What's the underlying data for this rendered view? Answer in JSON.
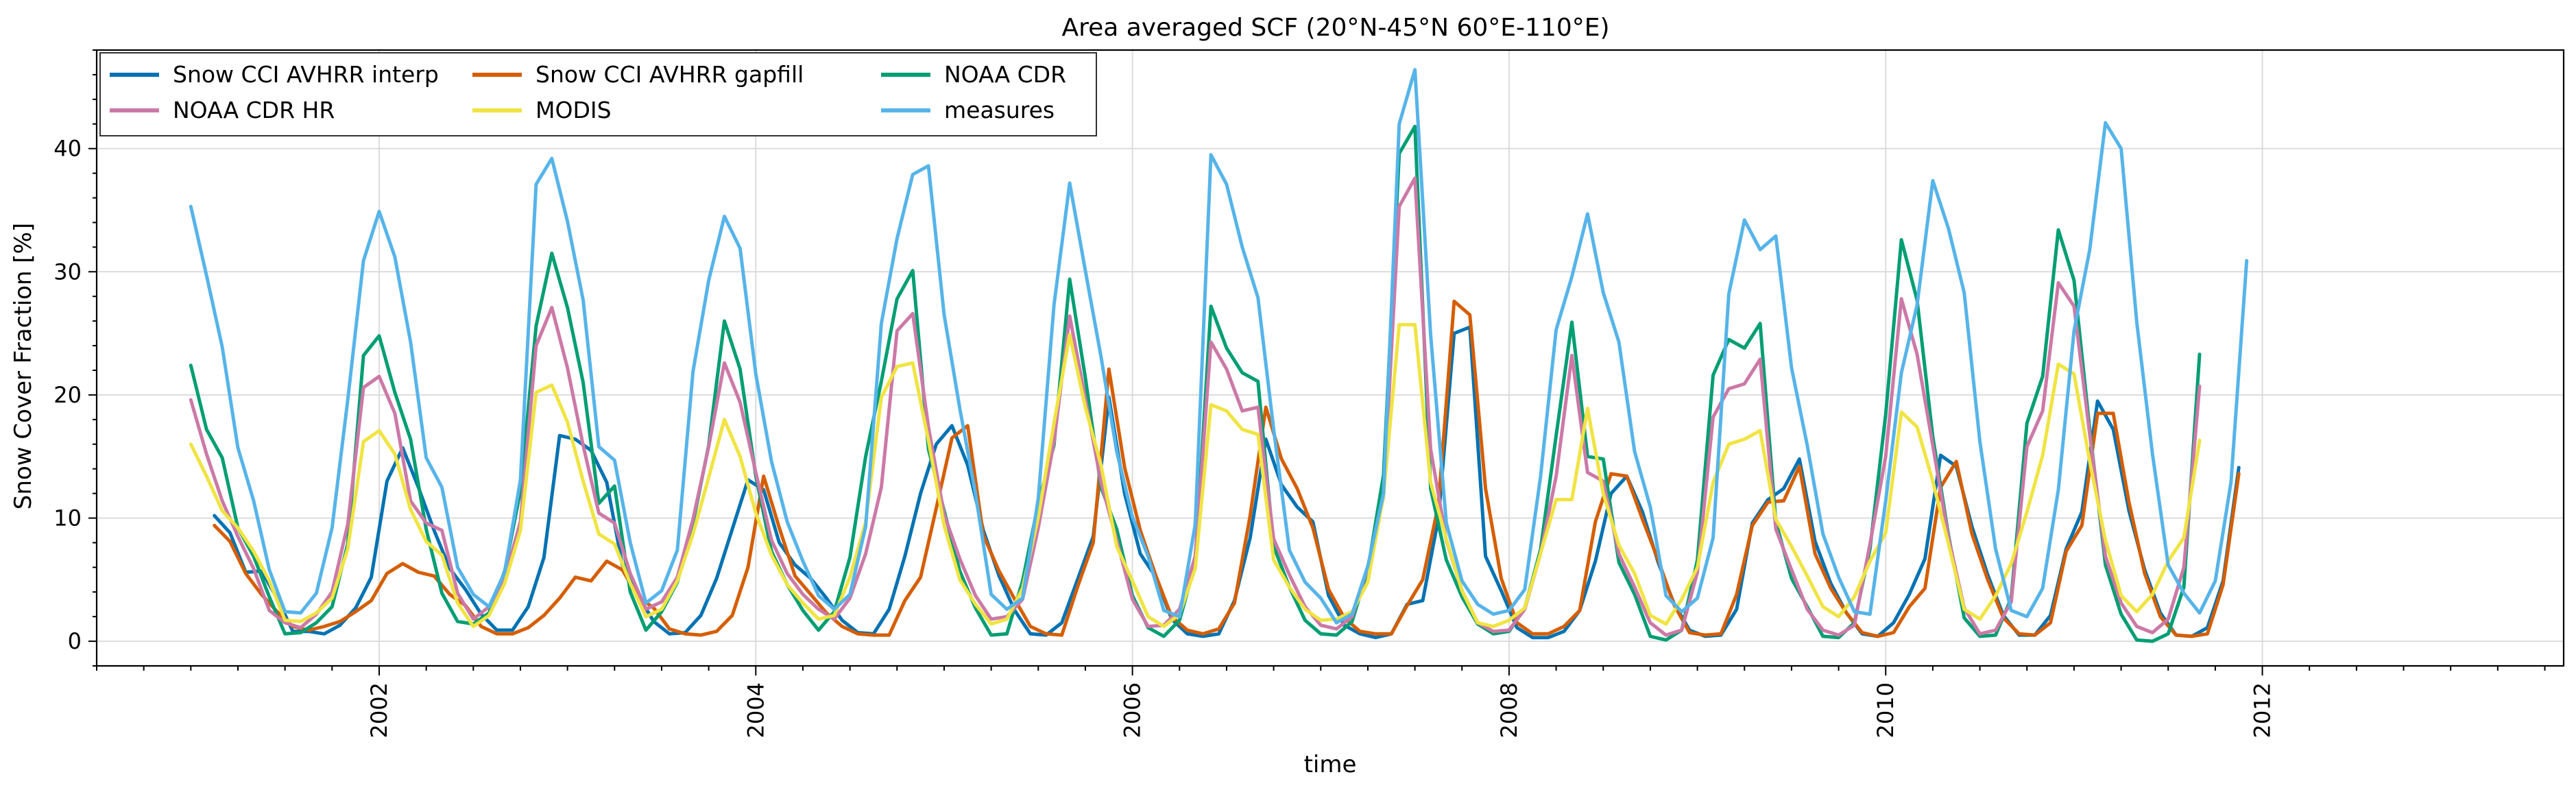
{
  "chart_data": {
    "type": "line",
    "title": "Area averaged SCF (20°N-45°N 60°E-110°E)",
    "xlabel": "time",
    "ylabel": "Snow Cover Fraction [%]",
    "xlim": [
      2000.5,
      2013.6
    ],
    "ylim": [
      -2,
      48
    ],
    "grid": true,
    "legend": "top-left",
    "x_ticks": [
      2002,
      2004,
      2006,
      2008,
      2010,
      2012
    ],
    "y_ticks": [
      0,
      10,
      20,
      30,
      40
    ],
    "x_tick_labels": [
      "2002",
      "2004",
      "2006",
      "2008",
      "2010",
      "2012"
    ],
    "y_tick_labels": [
      "0",
      "10",
      "20",
      "30",
      "40"
    ],
    "series": [
      {
        "name": "Snow CCI AVHRR interp",
        "color": "#0072b2",
        "x_start": 2001.125,
        "values": [
          10.2,
          8.8,
          5.6,
          5.7,
          3.5,
          0.8,
          0.8,
          0.6,
          1.3,
          2.7,
          5.2,
          13.0,
          15.7,
          12.5,
          9.0,
          5.9,
          4.2,
          2.2,
          0.9,
          0.9,
          2.8,
          6.8,
          16.7,
          16.4,
          15.5,
          12.9,
          6.2,
          3.7,
          1.6,
          0.6,
          0.7,
          2.1,
          5.1,
          9.1,
          13.1,
          12.3,
          8.0,
          6.2,
          5.1,
          3.5,
          1.7,
          0.7,
          0.6,
          2.6,
          6.9,
          12.0,
          16.0,
          17.5,
          14.3,
          9.0,
          5.3,
          2.5,
          0.6,
          0.5,
          1.5,
          5.0,
          8.5,
          19.8,
          12.0,
          7.1,
          5.2,
          1.8,
          0.6,
          0.4,
          0.6,
          3.3,
          8.4,
          16.4,
          12.7,
          10.9,
          9.7,
          3.7,
          1.3,
          0.6,
          0.3,
          0.6,
          3.0,
          3.3,
          10.0,
          25.0,
          25.5,
          6.9,
          4.1,
          1.1,
          0.3,
          0.3,
          0.8,
          2.5,
          6.5,
          12.0,
          13.4,
          10.5,
          6.4,
          3.1,
          0.9,
          0.4,
          0.5,
          2.6,
          9.6,
          11.5,
          12.4,
          14.8,
          8.1,
          4.7,
          2.3,
          0.6,
          0.4,
          1.5,
          3.8,
          6.7,
          15.1,
          14.2,
          9.3,
          5.4,
          2.1,
          0.5,
          0.5,
          2.1,
          7.5,
          10.5,
          19.5,
          17.2,
          10.6,
          5.8,
          2.3,
          0.5,
          0.4,
          1.1,
          4.9,
          14.1
        ]
      },
      {
        "name": "Snow CCI AVHRR gapfill",
        "color": "#d55e00",
        "x_start": 2001.125,
        "values": [
          9.4,
          8.1,
          5.5,
          3.8,
          2.4,
          1.2,
          0.9,
          1.2,
          1.6,
          2.4,
          3.3,
          5.5,
          6.3,
          5.6,
          5.3,
          3.8,
          2.9,
          1.2,
          0.6,
          0.6,
          1.1,
          2.1,
          3.5,
          5.2,
          4.9,
          6.5,
          5.8,
          3.6,
          2.7,
          1.0,
          0.6,
          0.5,
          0.8,
          2.1,
          6.0,
          13.4,
          9.2,
          5.3,
          3.8,
          2.3,
          1.2,
          0.6,
          0.5,
          0.5,
          3.3,
          5.2,
          10.8,
          16.5,
          17.5,
          8.6,
          5.7,
          3.4,
          1.2,
          0.6,
          0.5,
          4.4,
          8.0,
          22.1,
          14.1,
          9.0,
          5.3,
          2.0,
          0.9,
          0.6,
          1.0,
          3.1,
          10.2,
          19.0,
          14.8,
          12.4,
          9.2,
          4.2,
          1.9,
          0.8,
          0.6,
          0.6,
          2.9,
          5.0,
          11.1,
          27.6,
          26.5,
          12.4,
          5.1,
          1.5,
          0.6,
          0.6,
          1.2,
          2.5,
          9.7,
          13.6,
          13.4,
          9.9,
          6.6,
          3.0,
          0.7,
          0.5,
          0.6,
          3.8,
          9.4,
          11.3,
          11.4,
          14.2,
          7.1,
          4.3,
          2.3,
          0.7,
          0.4,
          0.7,
          2.8,
          4.3,
          12.5,
          14.6,
          8.7,
          5.0,
          1.9,
          0.6,
          0.5,
          1.5,
          7.3,
          9.4,
          18.5,
          18.5,
          11.3,
          5.5,
          2.0,
          0.5,
          0.4,
          0.6,
          4.6,
          13.6
        ]
      },
      {
        "name": "NOAA CDR",
        "color": "#009e73",
        "x_start": 2001.0,
        "values": [
          22.4,
          17.2,
          14.9,
          9.2,
          6.9,
          3.6,
          0.6,
          0.7,
          1.5,
          2.8,
          7.9,
          23.2,
          24.8,
          20.2,
          16.4,
          9.1,
          3.9,
          1.6,
          1.4,
          2.3,
          5.7,
          12.2,
          25.6,
          31.5,
          27.1,
          21.0,
          11.2,
          12.6,
          4.0,
          0.9,
          2.4,
          4.8,
          9.6,
          15.9,
          26.0,
          22.1,
          13.4,
          7.3,
          4.6,
          2.5,
          0.9,
          2.4,
          6.8,
          15.0,
          21.1,
          27.8,
          30.1,
          15.6,
          10.6,
          5.7,
          2.7,
          0.5,
          0.6,
          4.9,
          11.2,
          15.9,
          29.4,
          21.4,
          12.5,
          9.1,
          3.7,
          1.1,
          0.4,
          1.7,
          6.3,
          27.2,
          23.8,
          21.8,
          21.1,
          7.7,
          4.4,
          1.7,
          0.6,
          0.5,
          1.6,
          5.8,
          13.5,
          39.6,
          41.8,
          12.4,
          6.6,
          3.6,
          1.4,
          0.6,
          0.8,
          2.7,
          7.4,
          16.7,
          25.9,
          15.0,
          14.8,
          6.4,
          3.8,
          0.4,
          0.1,
          0.9,
          6.6,
          21.6,
          24.5,
          23.8,
          25.8,
          9.7,
          5.1,
          2.8,
          0.4,
          0.3,
          1.5,
          7.5,
          18.4,
          32.6,
          27.7,
          16.6,
          8.6,
          1.9,
          0.4,
          0.5,
          3.5,
          17.7,
          21.5,
          33.4,
          29.3,
          17.2,
          6.2,
          2.2,
          0.1,
          0.0,
          0.6,
          4.4,
          23.3
        ]
      },
      {
        "name": "NOAA CDR HR",
        "color": "#cc79a7",
        "x_start": 2001.0,
        "values": [
          19.6,
          15.2,
          11.4,
          8.5,
          5.9,
          2.5,
          1.5,
          1.1,
          2.2,
          4.0,
          9.5,
          20.6,
          21.5,
          18.5,
          11.4,
          9.6,
          9.0,
          3.9,
          1.8,
          2.8,
          5.1,
          9.7,
          24.0,
          27.1,
          22.2,
          15.9,
          10.4,
          9.6,
          5.5,
          2.6,
          3.2,
          5.2,
          9.9,
          15.8,
          22.6,
          19.4,
          13.7,
          8.2,
          5.5,
          3.8,
          2.6,
          1.8,
          3.5,
          7.1,
          12.5,
          25.2,
          26.6,
          17.4,
          10.3,
          6.7,
          3.7,
          1.8,
          2.0,
          3.4,
          9.2,
          16.2,
          26.4,
          19.7,
          12.9,
          8.2,
          3.4,
          1.2,
          1.3,
          2.6,
          6.9,
          24.3,
          22.1,
          18.7,
          19.0,
          8.3,
          5.4,
          2.8,
          1.3,
          1.0,
          2.0,
          6.0,
          11.7,
          35.3,
          37.6,
          15.6,
          8.2,
          4.1,
          1.5,
          0.8,
          0.9,
          2.6,
          7.1,
          13.4,
          23.2,
          13.7,
          13.0,
          7.1,
          4.4,
          1.5,
          0.5,
          0.9,
          5.6,
          18.2,
          20.5,
          20.9,
          22.9,
          9.1,
          5.8,
          2.6,
          0.9,
          0.5,
          1.3,
          7.9,
          15.0,
          27.8,
          23.3,
          15.9,
          8.4,
          2.7,
          0.6,
          0.9,
          3.2,
          15.8,
          18.7,
          29.1,
          27.2,
          16.8,
          6.9,
          3.1,
          1.2,
          0.7,
          1.8,
          6.0,
          20.7
        ]
      },
      {
        "name": "MODIS",
        "color": "#f0e442",
        "x_start": 2001.0,
        "values": [
          16.0,
          13.4,
          10.6,
          9.2,
          7.3,
          4.9,
          1.7,
          1.6,
          2.3,
          3.5,
          7.5,
          16.2,
          17.1,
          15.2,
          10.7,
          8.1,
          7.0,
          3.1,
          1.2,
          2.1,
          4.7,
          9.0,
          20.2,
          20.8,
          17.8,
          13.0,
          8.7,
          7.9,
          4.7,
          2.0,
          2.6,
          4.9,
          8.7,
          13.3,
          18.0,
          15.0,
          10.4,
          7.0,
          4.6,
          3.1,
          1.8,
          2.1,
          5.2,
          9.7,
          19.8,
          22.3,
          22.6,
          16.3,
          9.4,
          5.0,
          3.0,
          1.4,
          1.8,
          4.3,
          10.1,
          17.7,
          24.9,
          19.0,
          14.3,
          7.7,
          4.9,
          2.0,
          1.2,
          2.2,
          5.9,
          19.2,
          18.7,
          17.2,
          16.8,
          6.6,
          4.4,
          2.6,
          1.7,
          1.8,
          2.4,
          4.8,
          11.8,
          25.7,
          25.7,
          12.9,
          8.3,
          4.1,
          1.5,
          1.2,
          1.7,
          2.7,
          7.1,
          11.5,
          11.5,
          18.9,
          12.0,
          7.8,
          5.5,
          2.1,
          1.4,
          3.4,
          6.0,
          12.9,
          16.0,
          16.4,
          17.1,
          9.9,
          7.7,
          5.3,
          2.8,
          2.0,
          3.6,
          6.5,
          8.8,
          18.6,
          17.4,
          13.0,
          7.9,
          2.6,
          1.8,
          3.7,
          6.3,
          10.5,
          15.1,
          22.5,
          21.7,
          14.6,
          8.2,
          3.7,
          2.4,
          3.8,
          6.5,
          8.4,
          16.3
        ]
      },
      {
        "name": "measures",
        "color": "#56b4e9",
        "x_start": 2001.0,
        "values": [
          35.3,
          29.7,
          23.9,
          15.7,
          11.4,
          5.8,
          2.4,
          2.3,
          3.9,
          9.2,
          19.6,
          30.9,
          34.9,
          31.2,
          24.3,
          14.9,
          12.5,
          6.0,
          3.8,
          2.8,
          5.6,
          13.1,
          37.1,
          39.2,
          34.1,
          27.7,
          15.8,
          14.7,
          8.0,
          3.1,
          4.1,
          7.4,
          21.9,
          29.3,
          34.5,
          31.9,
          21.7,
          14.6,
          9.7,
          6.5,
          3.7,
          2.6,
          3.8,
          9.3,
          25.8,
          32.7,
          37.9,
          38.6,
          26.5,
          18.9,
          12.0,
          3.8,
          2.6,
          3.5,
          11.6,
          27.3,
          37.2,
          30.1,
          23.1,
          15.4,
          10.1,
          6.9,
          2.5,
          2.0,
          9.5,
          39.5,
          37.1,
          32.0,
          27.9,
          17.2,
          7.4,
          4.8,
          3.5,
          1.5,
          2.2,
          6.1,
          12.0,
          42.0,
          46.4,
          24.9,
          9.6,
          4.9,
          3.0,
          2.2,
          2.5,
          4.2,
          13.3,
          25.3,
          29.6,
          34.7,
          28.3,
          24.3,
          15.4,
          10.9,
          3.7,
          2.4,
          3.5,
          8.4,
          28.2,
          34.2,
          31.8,
          32.9,
          22.2,
          15.9,
          8.7,
          5.2,
          2.4,
          2.2,
          11.4,
          21.8,
          27.3,
          37.4,
          33.5,
          28.3,
          16.2,
          7.5,
          2.5,
          2.0,
          4.3,
          12.3,
          25.2,
          31.8,
          42.1,
          40.0,
          25.9,
          15.2,
          6.2,
          3.9,
          2.3,
          4.9,
          12.9,
          30.9
        ]
      }
    ]
  }
}
